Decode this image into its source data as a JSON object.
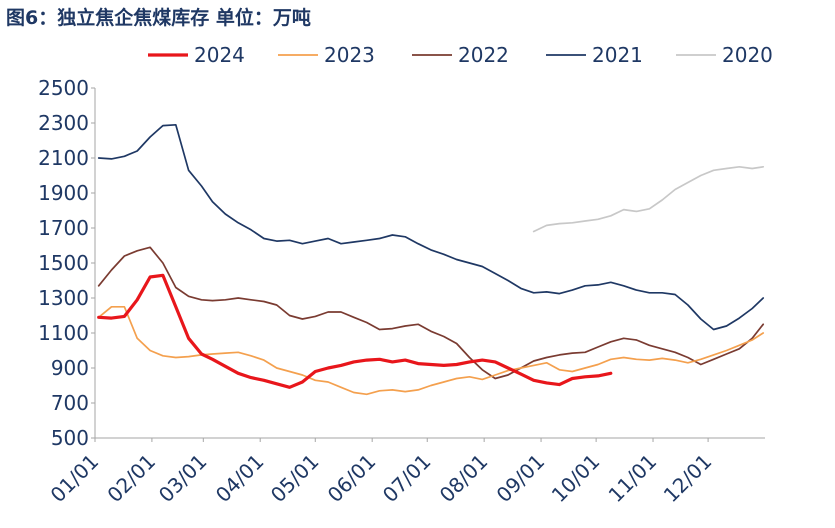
{
  "chart_data": {
    "type": "line",
    "title": "图6：独立焦企焦煤库存 单位：万吨",
    "xlabel": "",
    "ylabel": "",
    "ylim": [
      500,
      2500
    ],
    "yticks": [
      500,
      700,
      900,
      1100,
      1300,
      1500,
      1700,
      1900,
      2100,
      2300,
      2500
    ],
    "xticks": [
      "01/01",
      "02/01",
      "03/01",
      "04/01",
      "05/01",
      "06/01",
      "07/01",
      "08/01",
      "09/01",
      "10/01",
      "11/01",
      "12/01"
    ],
    "xlim": [
      "01/01",
      "12/31"
    ],
    "grid": false,
    "legend_position": "top",
    "series": [
      {
        "name": "2024",
        "color": "#e8161b",
        "points": [
          [
            "01/03",
            1190
          ],
          [
            "01/10",
            1185
          ],
          [
            "01/17",
            1195
          ],
          [
            "01/24",
            1290
          ],
          [
            "01/31",
            1420
          ],
          [
            "02/07",
            1430
          ],
          [
            "02/14",
            1250
          ],
          [
            "02/21",
            1070
          ],
          [
            "02/28",
            980
          ],
          [
            "03/06",
            950
          ],
          [
            "03/13",
            910
          ],
          [
            "03/20",
            870
          ],
          [
            "03/27",
            845
          ],
          [
            "04/03",
            830
          ],
          [
            "04/10",
            810
          ],
          [
            "04/17",
            790
          ],
          [
            "04/24",
            820
          ],
          [
            "05/01",
            880
          ],
          [
            "05/08",
            900
          ],
          [
            "05/15",
            915
          ],
          [
            "05/22",
            935
          ],
          [
            "05/29",
            945
          ],
          [
            "06/05",
            950
          ],
          [
            "06/12",
            935
          ],
          [
            "06/19",
            945
          ],
          [
            "06/26",
            925
          ],
          [
            "07/03",
            920
          ],
          [
            "07/10",
            915
          ],
          [
            "07/17",
            920
          ],
          [
            "07/24",
            935
          ],
          [
            "07/31",
            945
          ],
          [
            "08/07",
            935
          ],
          [
            "08/14",
            900
          ],
          [
            "08/21",
            865
          ],
          [
            "08/28",
            830
          ],
          [
            "09/04",
            815
          ],
          [
            "09/11",
            805
          ],
          [
            "09/18",
            840
          ],
          [
            "09/25",
            850
          ],
          [
            "10/02",
            855
          ],
          [
            "10/09",
            870
          ]
        ]
      },
      {
        "name": "2023",
        "color": "#f4a04e",
        "points": [
          [
            "01/03",
            1190
          ],
          [
            "01/10",
            1250
          ],
          [
            "01/17",
            1250
          ],
          [
            "01/24",
            1070
          ],
          [
            "01/31",
            1000
          ],
          [
            "02/07",
            970
          ],
          [
            "02/14",
            960
          ],
          [
            "02/21",
            965
          ],
          [
            "02/28",
            975
          ],
          [
            "03/06",
            980
          ],
          [
            "03/13",
            985
          ],
          [
            "03/20",
            990
          ],
          [
            "03/27",
            970
          ],
          [
            "04/03",
            945
          ],
          [
            "04/10",
            900
          ],
          [
            "04/17",
            880
          ],
          [
            "04/24",
            860
          ],
          [
            "05/01",
            830
          ],
          [
            "05/08",
            820
          ],
          [
            "05/15",
            790
          ],
          [
            "05/22",
            760
          ],
          [
            "05/29",
            750
          ],
          [
            "06/05",
            770
          ],
          [
            "06/12",
            775
          ],
          [
            "06/19",
            765
          ],
          [
            "06/26",
            775
          ],
          [
            "07/03",
            800
          ],
          [
            "07/10",
            820
          ],
          [
            "07/17",
            840
          ],
          [
            "07/24",
            850
          ],
          [
            "07/31",
            835
          ],
          [
            "08/07",
            860
          ],
          [
            "08/14",
            885
          ],
          [
            "08/21",
            900
          ],
          [
            "08/28",
            915
          ],
          [
            "09/04",
            930
          ],
          [
            "09/11",
            890
          ],
          [
            "09/18",
            880
          ],
          [
            "09/25",
            900
          ],
          [
            "10/02",
            920
          ],
          [
            "10/09",
            950
          ],
          [
            "10/16",
            960
          ],
          [
            "10/23",
            950
          ],
          [
            "10/30",
            945
          ],
          [
            "11/06",
            955
          ],
          [
            "11/13",
            945
          ],
          [
            "11/20",
            930
          ],
          [
            "11/27",
            950
          ],
          [
            "12/04",
            975
          ],
          [
            "12/11",
            1000
          ],
          [
            "12/18",
            1030
          ],
          [
            "12/25",
            1060
          ],
          [
            "12/31",
            1100
          ]
        ]
      },
      {
        "name": "2022",
        "color": "#7a3b31",
        "points": [
          [
            "01/03",
            1370
          ],
          [
            "01/10",
            1460
          ],
          [
            "01/17",
            1540
          ],
          [
            "01/24",
            1570
          ],
          [
            "01/31",
            1590
          ],
          [
            "02/07",
            1500
          ],
          [
            "02/14",
            1360
          ],
          [
            "02/21",
            1310
          ],
          [
            "02/28",
            1290
          ],
          [
            "03/06",
            1285
          ],
          [
            "03/13",
            1290
          ],
          [
            "03/20",
            1300
          ],
          [
            "03/27",
            1290
          ],
          [
            "04/03",
            1280
          ],
          [
            "04/10",
            1260
          ],
          [
            "04/17",
            1200
          ],
          [
            "04/24",
            1180
          ],
          [
            "05/01",
            1195
          ],
          [
            "05/08",
            1220
          ],
          [
            "05/15",
            1220
          ],
          [
            "05/22",
            1190
          ],
          [
            "05/29",
            1160
          ],
          [
            "06/05",
            1120
          ],
          [
            "06/12",
            1125
          ],
          [
            "06/19",
            1140
          ],
          [
            "06/26",
            1150
          ],
          [
            "07/03",
            1110
          ],
          [
            "07/10",
            1080
          ],
          [
            "07/17",
            1040
          ],
          [
            "07/24",
            960
          ],
          [
            "07/31",
            890
          ],
          [
            "08/07",
            840
          ],
          [
            "08/14",
            860
          ],
          [
            "08/21",
            900
          ],
          [
            "08/28",
            940
          ],
          [
            "09/04",
            960
          ],
          [
            "09/11",
            975
          ],
          [
            "09/18",
            985
          ],
          [
            "09/25",
            990
          ],
          [
            "10/02",
            1020
          ],
          [
            "10/09",
            1050
          ],
          [
            "10/16",
            1070
          ],
          [
            "10/23",
            1060
          ],
          [
            "10/30",
            1030
          ],
          [
            "11/06",
            1010
          ],
          [
            "11/13",
            990
          ],
          [
            "11/20",
            960
          ],
          [
            "11/27",
            920
          ],
          [
            "12/04",
            950
          ],
          [
            "12/11",
            980
          ],
          [
            "12/18",
            1010
          ],
          [
            "12/25",
            1070
          ],
          [
            "12/31",
            1150
          ]
        ]
      },
      {
        "name": "2021",
        "color": "#1f3864",
        "points": [
          [
            "01/03",
            2100
          ],
          [
            "01/10",
            2095
          ],
          [
            "01/17",
            2110
          ],
          [
            "01/24",
            2140
          ],
          [
            "01/31",
            2220
          ],
          [
            "02/07",
            2285
          ],
          [
            "02/14",
            2290
          ],
          [
            "02/21",
            2030
          ],
          [
            "02/28",
            1940
          ],
          [
            "03/06",
            1850
          ],
          [
            "03/13",
            1780
          ],
          [
            "03/20",
            1730
          ],
          [
            "03/27",
            1690
          ],
          [
            "04/03",
            1640
          ],
          [
            "04/10",
            1625
          ],
          [
            "04/17",
            1630
          ],
          [
            "04/24",
            1610
          ],
          [
            "05/01",
            1625
          ],
          [
            "05/08",
            1640
          ],
          [
            "05/15",
            1610
          ],
          [
            "05/22",
            1620
          ],
          [
            "05/29",
            1630
          ],
          [
            "06/05",
            1640
          ],
          [
            "06/12",
            1660
          ],
          [
            "06/19",
            1650
          ],
          [
            "06/26",
            1610
          ],
          [
            "07/03",
            1575
          ],
          [
            "07/10",
            1550
          ],
          [
            "07/17",
            1520
          ],
          [
            "07/24",
            1500
          ],
          [
            "07/31",
            1480
          ],
          [
            "08/07",
            1440
          ],
          [
            "08/14",
            1400
          ],
          [
            "08/21",
            1355
          ],
          [
            "08/28",
            1330
          ],
          [
            "09/04",
            1335
          ],
          [
            "09/11",
            1325
          ],
          [
            "09/18",
            1345
          ],
          [
            "09/25",
            1370
          ],
          [
            "10/02",
            1375
          ],
          [
            "10/09",
            1390
          ],
          [
            "10/16",
            1370
          ],
          [
            "10/23",
            1345
          ],
          [
            "10/30",
            1330
          ],
          [
            "11/06",
            1330
          ],
          [
            "11/13",
            1320
          ],
          [
            "11/20",
            1260
          ],
          [
            "11/27",
            1180
          ],
          [
            "12/04",
            1120
          ],
          [
            "12/11",
            1140
          ],
          [
            "12/18",
            1185
          ],
          [
            "12/25",
            1240
          ],
          [
            "12/31",
            1300
          ]
        ]
      },
      {
        "name": "2020",
        "color": "#c8c8c8",
        "points": [
          [
            "08/28",
            1680
          ],
          [
            "09/04",
            1715
          ],
          [
            "09/11",
            1725
          ],
          [
            "09/18",
            1730
          ],
          [
            "09/25",
            1740
          ],
          [
            "10/02",
            1750
          ],
          [
            "10/09",
            1770
          ],
          [
            "10/16",
            1805
          ],
          [
            "10/23",
            1795
          ],
          [
            "10/30",
            1810
          ],
          [
            "11/06",
            1860
          ],
          [
            "11/13",
            1920
          ],
          [
            "11/20",
            1960
          ],
          [
            "11/27",
            2000
          ],
          [
            "12/04",
            2030
          ],
          [
            "12/11",
            2040
          ],
          [
            "12/18",
            2050
          ],
          [
            "12/25",
            2040
          ],
          [
            "12/31",
            2050
          ]
        ]
      }
    ]
  }
}
